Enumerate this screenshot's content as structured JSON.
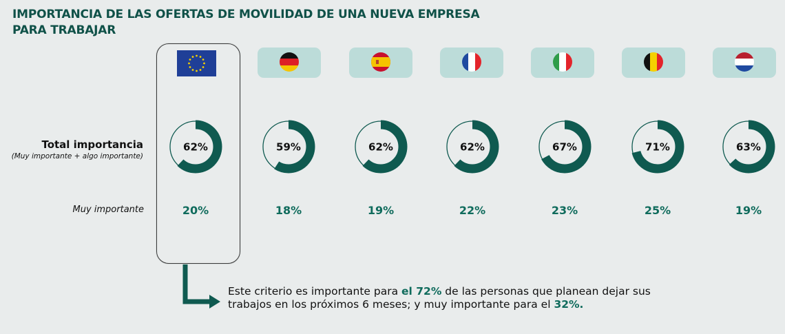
{
  "title": {
    "line1": "IMPORTANCIA DE LAS OFERTAS DE MOVILIDAD DE UNA NUEVA EMPRESA",
    "line2": "PARA TRABAJAR"
  },
  "labels": {
    "total": "Total importancia",
    "total_sub": "(Muy importante + algo importante)",
    "muy": "Muy importante"
  },
  "colors": {
    "accent": "#0f6b5c",
    "ring": "#0f5a50",
    "flag_bg": "#bcdcd9",
    "title": "#0f5148"
  },
  "chart_data": {
    "type": "donut",
    "title": "IMPORTANCIA DE LAS OFERTAS DE MOVILIDAD DE UNA NUEVA EMPRESA PARA TRABAJAR",
    "categories": [
      "Unión Europea",
      "Alemania",
      "España",
      "Francia",
      "Italia",
      "Bélgica",
      "Países Bajos"
    ],
    "series": [
      {
        "name": "Total importancia (Muy importante + algo importante)",
        "values": [
          62,
          59,
          62,
          62,
          67,
          71,
          63
        ],
        "labels": [
          "62%",
          "59%",
          "62%",
          "62%",
          "67%",
          "71%",
          "63%"
        ]
      },
      {
        "name": "Muy importante",
        "values": [
          20,
          18,
          19,
          22,
          23,
          25,
          19
        ],
        "labels": [
          "20%",
          "18%",
          "19%",
          "22%",
          "23%",
          "25%",
          "19%"
        ]
      }
    ],
    "flags": [
      "eu-flag",
      "germany-flag",
      "spain-flag",
      "france-flag",
      "italy-flag",
      "belgium-flag",
      "netherlands-flag"
    ],
    "highlight": "Unión Europea"
  },
  "note": {
    "before": "Este criterio es importante para ",
    "highlight1": "el 72%",
    "middle": " de las personas que planean dejar sus trabajos en los próximos 6 meses; y muy importante para el ",
    "highlight2": "32%."
  }
}
